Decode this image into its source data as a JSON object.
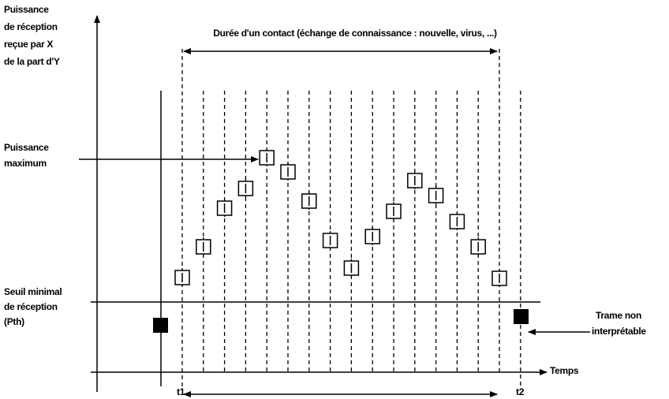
{
  "y_axis_label": [
    "Puissance",
    "de réception",
    "reçue par X",
    "de la part d'Y"
  ],
  "duration_label": "Durée d'un contact (échange de connaissance : nouvelle, virus, ...)",
  "max_label": [
    "Puissance",
    "maximum"
  ],
  "threshold_label": [
    "Seuil minimal",
    "de réception",
    "(Pth)"
  ],
  "frame_label": [
    "Trame non",
    "interprétable"
  ],
  "x_axis_label": "Temps",
  "t1": "t1",
  "t2": "t2"
}
